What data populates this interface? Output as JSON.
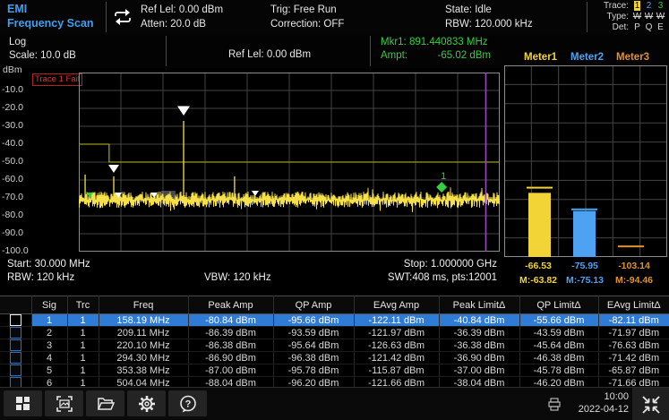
{
  "top_bar": {
    "title_line1": "EMI",
    "title_line2": "Frequency Scan",
    "ref_level": "Ref Lel: 0.00 dBm",
    "atten": "Atten: 20.0 dB",
    "trig": "Trig: Free Run",
    "correction": "Correction: OFF",
    "state": "State: Idle",
    "rbw": "RBW: 120.000 kHz",
    "trace_label": "Trace:",
    "type_label": "Type:",
    "det_label": "Det:",
    "trace_nums": [
      "1",
      "2",
      "3"
    ],
    "trace_types": [
      "W",
      "W",
      "W"
    ],
    "trace_dets": [
      "P",
      "Q",
      "E"
    ]
  },
  "sub_bar": {
    "log": "Log",
    "scale": "Scale: 10.0 dB",
    "ref_level": "Ref Lel: 0.00 dBm",
    "mkr_freq": "Mkr1: 891.440833 MHz",
    "ampt_label": "Ampt:",
    "ampt_value": "-65.02 dBm",
    "meter_labels": [
      "Meter1",
      "Meter2",
      "Meter3"
    ]
  },
  "plot": {
    "unit": "dBm",
    "y_ticks": [
      "-10.0",
      "-20.0",
      "-30.0",
      "-40.0",
      "-50.0",
      "-60.0",
      "-70.0",
      "-80.0",
      "-90.0",
      "-100.0"
    ],
    "fail_flag": "Trace 1 Fail",
    "start": "Start: 30.000 MHz",
    "stop": "Stop: 1.000000 GHz",
    "rbw": "RBW: 120 kHz",
    "vbw": "VBW: 120 kHz",
    "swt": "SWT:408 ms, pts:12001"
  },
  "meters": {
    "values": [
      "-66.53",
      "-75.95",
      "-103.14"
    ],
    "max_values": [
      "M:-63.82",
      "M:-75.13",
      "M:-94.46"
    ],
    "value_dbm": [
      -66.53,
      -75.95,
      -103.14
    ],
    "max_dbm": [
      -63.82,
      -75.13,
      -94.46
    ],
    "colors": [
      "#f2d437",
      "#4da3f2",
      "#e0922f"
    ],
    "scale_top_dbm": 0,
    "scale_bottom_dbm": -100
  },
  "table": {
    "headers": [
      "Sig",
      "Trc",
      "Freq",
      "Peak Amp",
      "QP Amp",
      "EAvg Amp",
      "Peak LimitΔ",
      "QP LimitΔ",
      "EAvg LimitΔ"
    ],
    "rows": [
      {
        "selected": true,
        "sig": "1",
        "trc": "1",
        "freq": "158.19 MHz",
        "peak_amp": "-80.84 dBm",
        "qp_amp": "-95.66 dBm",
        "eavg_amp": "-122.11 dBm",
        "peak_delta": "-40.84 dBm",
        "qp_delta": "-55.66 dBm",
        "eavg_delta": "-82.11 dBm"
      },
      {
        "selected": false,
        "sig": "2",
        "trc": "1",
        "freq": "209.11 MHz",
        "peak_amp": "-86.39 dBm",
        "qp_amp": "-93.59 dBm",
        "eavg_amp": "-121.97 dBm",
        "peak_delta": "-36.39 dBm",
        "qp_delta": "-43.59 dBm",
        "eavg_delta": "-71.97 dBm"
      },
      {
        "selected": false,
        "sig": "3",
        "trc": "1",
        "freq": "220.10 MHz",
        "peak_amp": "-86.38 dBm",
        "qp_amp": "-95.64 dBm",
        "eavg_amp": "-126.63 dBm",
        "peak_delta": "-36.38 dBm",
        "qp_delta": "-45.64 dBm",
        "eavg_delta": "-76.63 dBm"
      },
      {
        "selected": false,
        "sig": "4",
        "trc": "1",
        "freq": "294.30 MHz",
        "peak_amp": "-86.90 dBm",
        "qp_amp": "-96.38 dBm",
        "eavg_amp": "-121.42 dBm",
        "peak_delta": "-36.90 dBm",
        "qp_delta": "-46.38 dBm",
        "eavg_delta": "-71.42 dBm"
      },
      {
        "selected": false,
        "sig": "5",
        "trc": "1",
        "freq": "353.38 MHz",
        "peak_amp": "-87.00 dBm",
        "qp_amp": "-95.78 dBm",
        "eavg_amp": "-115.87 dBm",
        "peak_delta": "-37.00 dBm",
        "qp_delta": "-45.78 dBm",
        "eavg_delta": "-65.87 dBm"
      },
      {
        "selected": false,
        "sig": "6",
        "trc": "1",
        "freq": "504.04 MHz",
        "peak_amp": "-88.04 dBm",
        "qp_amp": "-96.20 dBm",
        "eavg_amp": "-121.66 dBm",
        "peak_delta": "-38.04 dBm",
        "qp_delta": "-46.20 dBm",
        "eavg_delta": "-71.66 dBm"
      }
    ]
  },
  "footer": {
    "time": "10:00",
    "date": "2022-04-12"
  },
  "chart_data": {
    "type": "line",
    "title": "EMI Frequency Scan spectrum, trace 1",
    "x_range_mhz": [
      30,
      1000
    ],
    "x_start_label": "Start: 30.000 MHz",
    "x_stop_label": "Stop: 1.000000 GHz",
    "y_unit": "dBm",
    "y_range_dbm": [
      0,
      -100
    ],
    "grid": true,
    "trace_color": "#f5e04a",
    "noise_floor_dbm": -71,
    "noise_spread_db": 4.5,
    "peaks": [
      {
        "x_frac": 0.015,
        "dbm": -57
      },
      {
        "x_frac": 0.083,
        "dbm": -58
      },
      {
        "x_frac": 0.249,
        "dbm": -27
      },
      {
        "x_frac": 0.37,
        "dbm": -58
      }
    ],
    "limit_line": {
      "color": "#9a9a20",
      "segments": [
        {
          "from_frac": 0.0,
          "to_frac": 0.072,
          "dbm": -40
        },
        {
          "from_frac": 0.072,
          "to_frac": 1.0,
          "dbm": -50
        }
      ]
    },
    "markers": [
      {
        "shape": "triangle",
        "color": "#ffffff",
        "x_frac": 0.249,
        "dbm": -24,
        "size": 7
      },
      {
        "shape": "triangle",
        "color": "#ffffff",
        "x_frac": 0.083,
        "dbm": -56,
        "size": 6
      },
      {
        "shape": "triangle",
        "color": "#ffffff",
        "x_frac": 0.094,
        "dbm": -70,
        "size": 4
      },
      {
        "shape": "triangle",
        "color": "#ffffff",
        "x_frac": 0.179,
        "dbm": -70,
        "size": 4
      },
      {
        "shape": "triangle",
        "color": "#ffffff",
        "x_frac": 0.419,
        "dbm": -69,
        "size": 4
      },
      {
        "shape": "triangle",
        "color": "#35cf3f",
        "x_frac": 0.026,
        "dbm": -70,
        "size": 4
      },
      {
        "shape": "diamond",
        "color": "#35cf3f",
        "x_frac": 0.862,
        "dbm": -64,
        "size": 6,
        "label": "1"
      }
    ],
    "marker1": {
      "freq_mhz": 891.440833,
      "ampt_dbm": -65.02
    },
    "highlight_region": {
      "x_frac": 0.196,
      "w_frac": 0.034,
      "dbm_top": -66,
      "dbm_bottom": -73
    },
    "display_line": {
      "x_frac": 0.967,
      "color": "#9b4bbf"
    },
    "meters_chart": {
      "type": "bar",
      "categories": [
        "Meter1",
        "Meter2",
        "Meter3"
      ],
      "values": [
        -66.53,
        -75.95,
        -103.14
      ],
      "max_hold": [
        -63.82,
        -75.13,
        -94.46
      ],
      "colors": [
        "#f2d437",
        "#4da3f2",
        "#e0922f"
      ],
      "ylim": [
        0,
        -100
      ]
    }
  }
}
